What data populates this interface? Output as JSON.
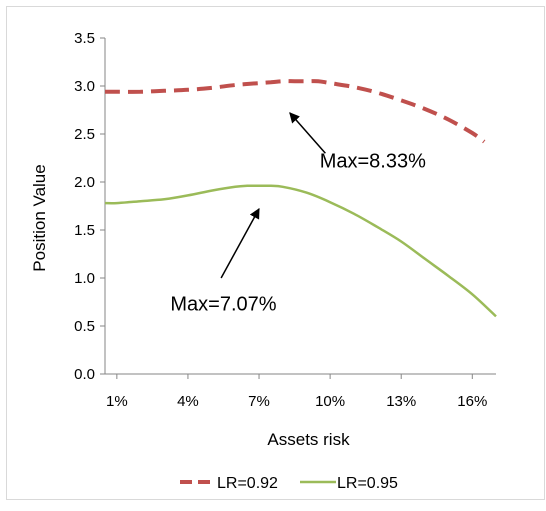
{
  "chart_data": {
    "type": "line",
    "title": "",
    "xlabel": "Assets risk",
    "ylabel": "Position Value",
    "x_ticks": [
      "1%",
      "4%",
      "7%",
      "10%",
      "13%",
      "16%"
    ],
    "x_tick_values": [
      1,
      4,
      7,
      10,
      13,
      16
    ],
    "xlim": [
      0.5,
      17
    ],
    "ylim": [
      0,
      3.5
    ],
    "y_ticks": [
      "0.0",
      "0.5",
      "1.0",
      "1.5",
      "2.0",
      "2.5",
      "3.0",
      "3.5"
    ],
    "y_tick_values": [
      0,
      0.5,
      1,
      1.5,
      2,
      2.5,
      3,
      3.5
    ],
    "grid": false,
    "legend": "bottom",
    "series": [
      {
        "name": "LR=0.92",
        "color": "#C0504D",
        "dash": true,
        "x": [
          0.5,
          1,
          2,
          3,
          4,
          5,
          6,
          7,
          7.5,
          8,
          8.5,
          9,
          9.5,
          10,
          11,
          12,
          13,
          14,
          15,
          16,
          16.5
        ],
        "y": [
          2.94,
          2.94,
          2.94,
          2.95,
          2.96,
          2.98,
          3.01,
          3.03,
          3.04,
          3.05,
          3.05,
          3.05,
          3.05,
          3.03,
          2.99,
          2.93,
          2.85,
          2.76,
          2.65,
          2.51,
          2.42
        ]
      },
      {
        "name": "LR=0.95",
        "color": "#9BBB59",
        "dash": false,
        "x": [
          0.5,
          1,
          2,
          3,
          4,
          5,
          6,
          6.5,
          7,
          7.5,
          8,
          9,
          10,
          11,
          12,
          13,
          14,
          15,
          16,
          17
        ],
        "y": [
          1.78,
          1.78,
          1.8,
          1.82,
          1.86,
          1.91,
          1.95,
          1.96,
          1.96,
          1.96,
          1.95,
          1.89,
          1.79,
          1.67,
          1.53,
          1.38,
          1.2,
          1.02,
          0.83,
          0.6
        ]
      }
    ],
    "annotations": [
      {
        "text": "Max=8.33%",
        "text_x": 11.8,
        "text_y": 2.15,
        "arrow_from": [
          9.8,
          2.3
        ],
        "arrow_to": [
          8.3,
          2.72
        ]
      },
      {
        "text": "Max=7.07%",
        "text_x": 5.5,
        "text_y": 0.66,
        "arrow_from": [
          5.4,
          1.0
        ],
        "arrow_to": [
          7.0,
          1.72
        ]
      }
    ]
  }
}
